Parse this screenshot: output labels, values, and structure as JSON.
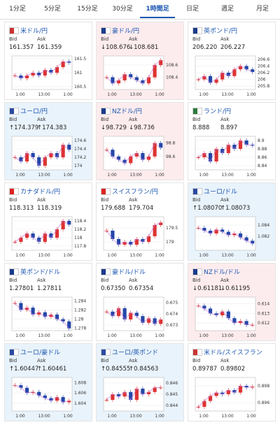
{
  "tabs": [
    "1分足",
    "5分足",
    "15分足",
    "30分足",
    "1時間足",
    "日足",
    "週足",
    "月足"
  ],
  "selected_tab": 4,
  "bid_label": "Bid",
  "ask_label": "Ask",
  "xlabels": [
    "1:00",
    "13:00",
    "1:00"
  ],
  "cards": [
    {
      "name": "米ドル/円",
      "bid": "161.357",
      "ask": "161.359",
      "trend": "none",
      "ylim": [
        160.4,
        161.6
      ],
      "yticks": [
        161.5,
        161,
        160.5
      ],
      "closes": [
        160.9,
        160.8,
        160.9,
        161.0,
        160.9,
        161.1,
        161.0,
        161.2,
        161.4,
        161.36
      ]
    },
    {
      "name": "豪ドル/円",
      "bid": "↓108.676",
      "ask": "↓108.681",
      "trend": "down",
      "ylim": [
        108.2,
        108.75
      ],
      "yticks": [
        108.6,
        108.4
      ],
      "closes": [
        108.4,
        108.3,
        108.35,
        108.45,
        108.4,
        108.35,
        108.3,
        108.4,
        108.6,
        108.68
      ]
    },
    {
      "name": "英ポンド/円",
      "bid": "206.220",
      "ask": "206.227",
      "trend": "none",
      "ylim": [
        205.7,
        206.7
      ],
      "yticks": [
        206.6,
        206.4,
        206.2,
        206,
        205.8
      ],
      "closes": [
        206.0,
        206.1,
        205.9,
        206.0,
        206.2,
        206.1,
        206.3,
        206.4,
        206.3,
        206.22
      ]
    },
    {
      "name": "ユーロ/円",
      "bid": "↑174.379",
      "ask": "↑174.383",
      "trend": "up",
      "ylim": [
        173.9,
        174.7
      ],
      "yticks": [
        174.6,
        174.4,
        174.2,
        174
      ],
      "closes": [
        174.2,
        174.1,
        174.3,
        174.2,
        174.0,
        174.2,
        174.3,
        174.2,
        174.5,
        174.38
      ]
    },
    {
      "name": "NZドル/円",
      "bid": "↓98.729",
      "ask": "↓98.736",
      "trend": "down",
      "ylim": [
        98.4,
        98.9
      ],
      "yticks": [
        98.8,
        98.6
      ],
      "closes": [
        98.7,
        98.6,
        98.55,
        98.5,
        98.6,
        98.65,
        98.55,
        98.6,
        98.8,
        98.73
      ]
    },
    {
      "name": "ランド/円",
      "bid": "8.888",
      "ask": "8.897",
      "trend": "none",
      "ylim": [
        8.83,
        8.91
      ],
      "yticks": [
        8.9,
        8.88,
        8.86,
        8.84
      ],
      "closes": [
        8.86,
        8.87,
        8.85,
        8.88,
        8.87,
        8.89,
        8.88,
        8.9,
        8.89,
        8.888
      ]
    },
    {
      "name": "カナダドル/円",
      "bid": "118.313",
      "ask": "118.319",
      "trend": "none",
      "ylim": [
        117.7,
        118.5
      ],
      "yticks": [
        118.4,
        118.2,
        118,
        117.8
      ],
      "closes": [
        117.9,
        118.0,
        118.1,
        118.0,
        117.9,
        118.1,
        118.0,
        118.2,
        118.4,
        118.31
      ]
    },
    {
      "name": "スイスフラン/円",
      "bid": "179.688",
      "ask": "179.704",
      "trend": "none",
      "ylim": [
        178.7,
        179.9
      ],
      "yticks": [
        179.5,
        179
      ],
      "closes": [
        179.4,
        179.1,
        178.9,
        179.0,
        178.9,
        179.1,
        179.0,
        179.2,
        179.6,
        179.69
      ]
    },
    {
      "name": "ユーロ/ドル",
      "bid": "↑1.08070",
      "ask": "↑1.08073",
      "trend": "up",
      "ylim": [
        1.0795,
        1.0855
      ],
      "yticks": [
        1.084,
        1.082
      ],
      "closes": [
        1.0835,
        1.083,
        1.0825,
        1.0832,
        1.0828,
        1.0822,
        1.0825,
        1.0818,
        1.0812,
        1.0807
      ]
    },
    {
      "name": "英ポンド/ドル",
      "bid": "1.27801",
      "ask": "1.27811",
      "trend": "none",
      "ylim": [
        1.2775,
        1.2848
      ],
      "yticks": [
        1.284,
        1.282,
        1.28,
        1.278
      ],
      "closes": [
        1.2835,
        1.282,
        1.2825,
        1.281,
        1.2815,
        1.2805,
        1.281,
        1.28,
        1.2795,
        1.278
      ]
    },
    {
      "name": "豪ドル/ドル",
      "bid": "0.67350",
      "ask": "0.67354",
      "trend": "none",
      "ylim": [
        0.6725,
        0.6755
      ],
      "yticks": [
        0.675,
        0.674,
        0.673
      ],
      "closes": [
        0.6742,
        0.6738,
        0.6745,
        0.6735,
        0.6741,
        0.6738,
        0.6732,
        0.6736,
        0.6731,
        0.6735
      ]
    },
    {
      "name": "NZドル/ドル",
      "bid": "↓0.61181",
      "ask": "↓0.61195",
      "trend": "down",
      "ylim": [
        0.6112,
        0.6147
      ],
      "yticks": [
        0.614,
        0.613,
        0.612
      ],
      "closes": [
        0.6138,
        0.6135,
        0.613,
        0.6128,
        0.6132,
        0.6125,
        0.612,
        0.6122,
        0.6118,
        0.6118
      ]
    },
    {
      "name": "ユーロ/豪ドル",
      "bid": "↑1.60447",
      "ask": "↑1.60461",
      "trend": "up",
      "ylim": [
        1.6025,
        1.609
      ],
      "yticks": [
        1.608,
        1.606,
        1.604
      ],
      "closes": [
        1.6075,
        1.607,
        1.606,
        1.6062,
        1.6055,
        1.605,
        1.6045,
        1.6052,
        1.6042,
        1.6045
      ]
    },
    {
      "name": "ユーロ/英ポンド",
      "bid": "↑0.84555",
      "ask": "↑0.84563",
      "trend": "up",
      "ylim": [
        0.8435,
        0.8465
      ],
      "yticks": [
        0.846,
        0.845,
        0.844
      ],
      "closes": [
        0.8445,
        0.845,
        0.8448,
        0.8452,
        0.8445,
        0.8455,
        0.845,
        0.8452,
        0.8456,
        0.8456
      ]
    },
    {
      "name": "米ドル/スイスフラン",
      "bid": "0.89787",
      "ask": "0.89802",
      "trend": "none",
      "ylim": [
        0.895,
        0.899
      ],
      "yticks": [
        0.898,
        0.896
      ],
      "closes": [
        0.8955,
        0.8962,
        0.8968,
        0.8972,
        0.897,
        0.8975,
        0.8972,
        0.898,
        0.8978,
        0.8979
      ]
    }
  ]
}
